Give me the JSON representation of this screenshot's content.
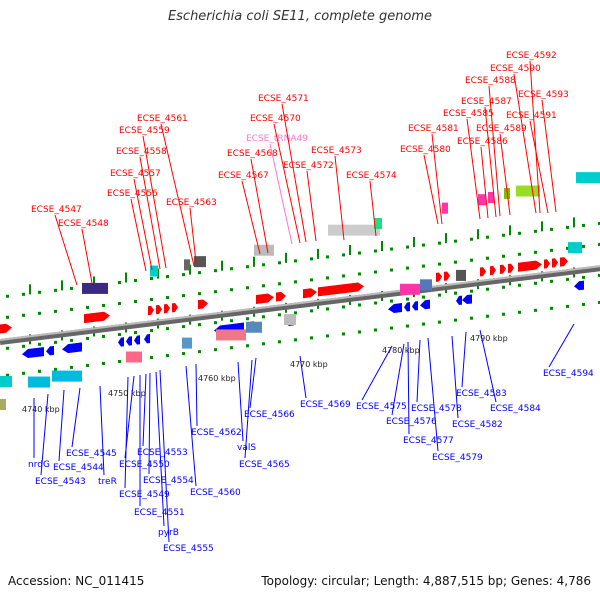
{
  "title": "Escherichia coli SE11, complete genome",
  "footer": {
    "accession": "Accession: NC_011415",
    "summary": "Topology: circular; Length: 4,887,515 bp; Genes: 4,786"
  },
  "colors": {
    "plus_strand": "#ff0000",
    "minus_strand": "#0000ff",
    "trna": "#ff77cc",
    "backbone": "#888888",
    "tick": "#008800"
  },
  "scale_labels": [
    "4740 kbp",
    "4750 kbp",
    "4760 kbp",
    "4770 kbp",
    "4780 kbp",
    "4790 kbp"
  ],
  "top_labels": [
    {
      "text": "ECSE_4547",
      "kind": "gene"
    },
    {
      "text": "ECSE_4548",
      "kind": "gene"
    },
    {
      "text": "ECSE_4556",
      "kind": "gene"
    },
    {
      "text": "ECSE_4557",
      "kind": "gene"
    },
    {
      "text": "ECSE_4558",
      "kind": "gene"
    },
    {
      "text": "ECSE_4559",
      "kind": "gene"
    },
    {
      "text": "ECSE_4561",
      "kind": "gene"
    },
    {
      "text": "ECSE_4563",
      "kind": "gene"
    },
    {
      "text": "ECSE_4567",
      "kind": "gene"
    },
    {
      "text": "ECSE_4568",
      "kind": "gene"
    },
    {
      "text": "ECSE_tRNA49",
      "kind": "trna"
    },
    {
      "text": "ECSE_4570",
      "kind": "gene"
    },
    {
      "text": "ECSE_4571",
      "kind": "gene"
    },
    {
      "text": "ECSE_4572",
      "kind": "gene"
    },
    {
      "text": "ECSE_4573",
      "kind": "gene"
    },
    {
      "text": "ECSE_4574",
      "kind": "gene"
    },
    {
      "text": "ECSE_4580",
      "kind": "gene"
    },
    {
      "text": "ECSE_4581",
      "kind": "gene"
    },
    {
      "text": "ECSE_4585",
      "kind": "gene"
    },
    {
      "text": "ECSE_4586",
      "kind": "gene"
    },
    {
      "text": "ECSE_4587",
      "kind": "gene"
    },
    {
      "text": "ECSE_4588",
      "kind": "gene"
    },
    {
      "text": "ECSE_4589",
      "kind": "gene"
    },
    {
      "text": "ECSE_4590",
      "kind": "gene"
    },
    {
      "text": "ECSE_4591",
      "kind": "gene"
    },
    {
      "text": "ECSE_4592",
      "kind": "gene"
    },
    {
      "text": "ECSE_4593",
      "kind": "gene"
    }
  ],
  "bottom_labels": [
    {
      "text": "nrdG"
    },
    {
      "text": "ECSE_4543"
    },
    {
      "text": "ECSE_4544"
    },
    {
      "text": "ECSE_4545"
    },
    {
      "text": "treR"
    },
    {
      "text": "ECSE_4549"
    },
    {
      "text": "ECSE_4550"
    },
    {
      "text": "ECSE_4551"
    },
    {
      "text": "ECSE_4553"
    },
    {
      "text": "ECSE_4554"
    },
    {
      "text": "pyrB"
    },
    {
      "text": "ECSE_4555"
    },
    {
      "text": "ECSE_4560"
    },
    {
      "text": "ECSE_4562"
    },
    {
      "text": "valS"
    },
    {
      "text": "ECSE_4565"
    },
    {
      "text": "ECSE_4566"
    },
    {
      "text": "ECSE_4569"
    },
    {
      "text": "ECSE_4575"
    },
    {
      "text": "ECSE_4576"
    },
    {
      "text": "ECSE_4577"
    },
    {
      "text": "ECSE_4578"
    },
    {
      "text": "ECSE_4579"
    },
    {
      "text": "ECSE_4582"
    },
    {
      "text": "ECSE_4583"
    },
    {
      "text": "ECSE_4584"
    },
    {
      "text": "ECSE_4594"
    }
  ]
}
